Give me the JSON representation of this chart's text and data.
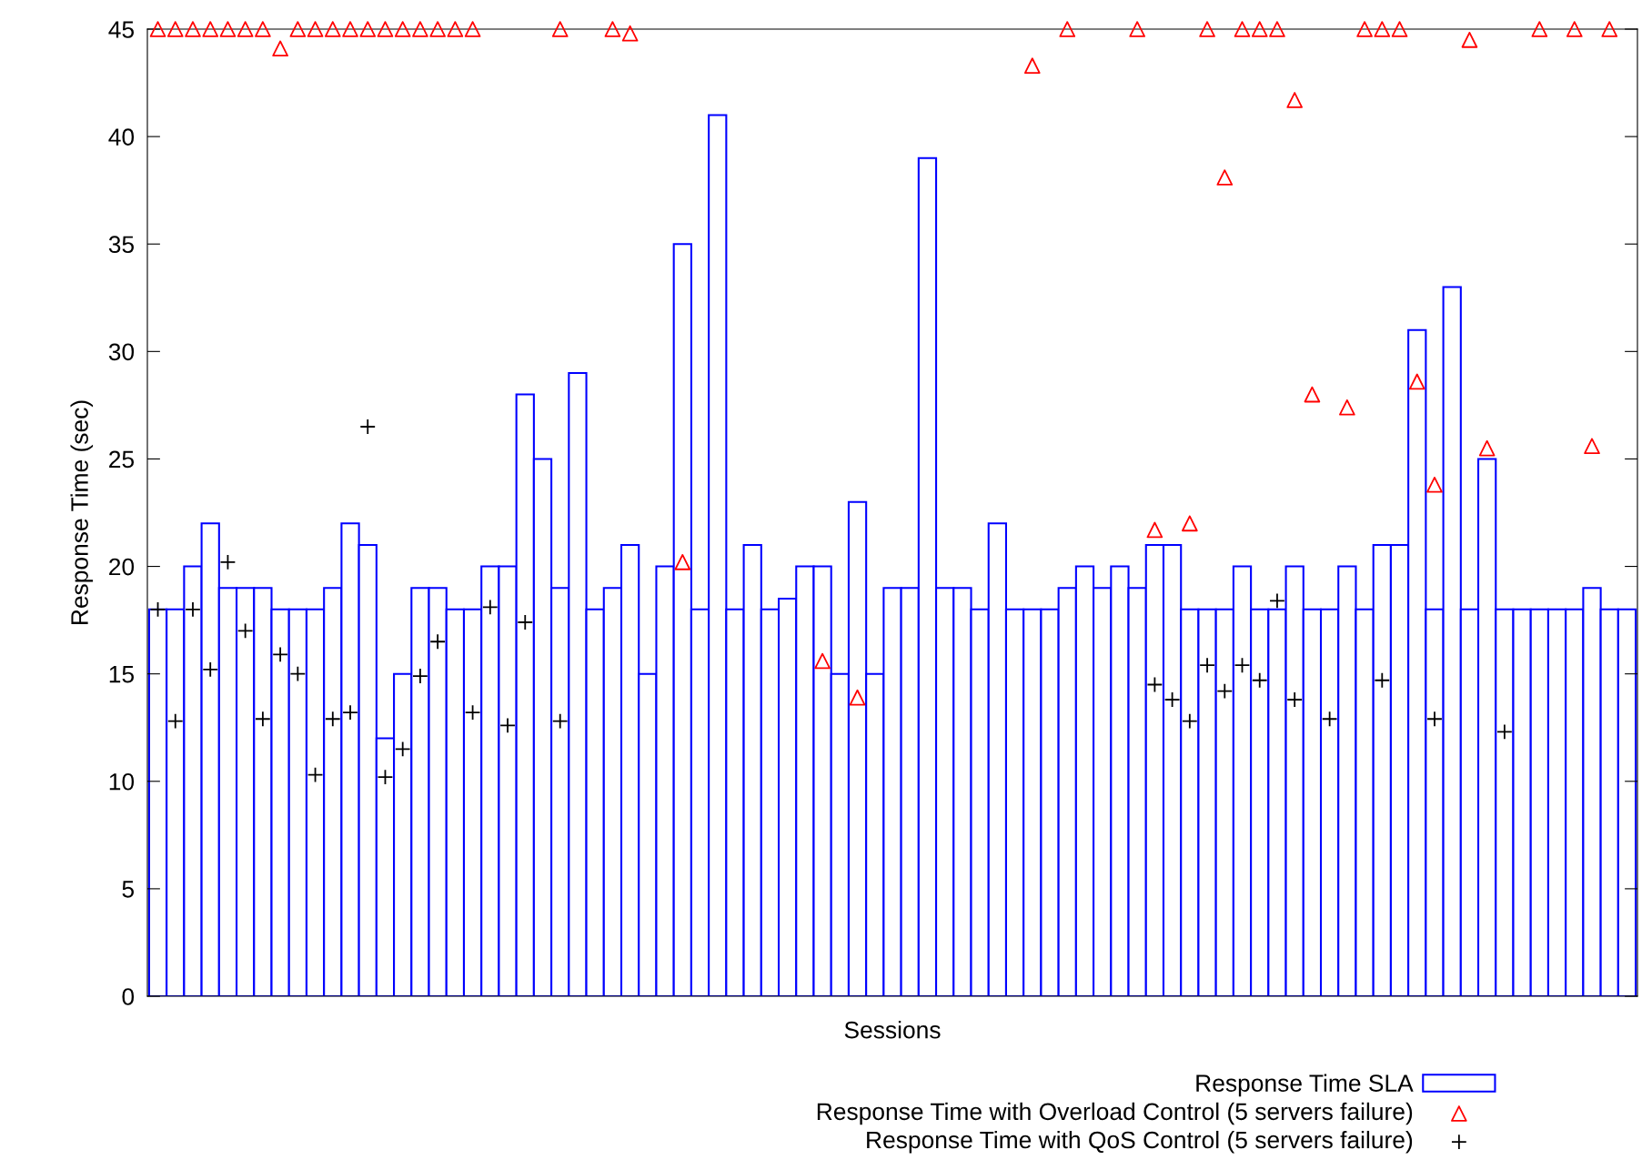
{
  "chart_data": {
    "type": "bar",
    "xlabel": "Sessions",
    "ylabel": "Response Time (sec)",
    "categories": [
      null,
      null,
      null,
      null,
      null,
      null,
      null,
      null,
      null,
      null,
      null,
      null,
      null,
      null,
      null,
      null,
      null,
      null,
      null,
      null,
      null,
      null,
      null,
      null,
      null,
      null,
      null,
      null,
      null,
      null,
      null,
      null,
      null,
      null,
      null,
      null,
      null,
      null,
      null,
      null,
      null,
      null,
      null,
      null,
      null,
      null,
      null,
      null,
      null,
      null,
      null,
      null,
      null,
      null,
      null,
      null,
      null,
      null,
      null,
      null,
      null,
      null,
      null,
      null,
      null,
      null,
      null,
      null,
      null,
      null,
      null,
      null,
      null,
      null,
      null,
      null,
      null,
      null,
      null,
      null,
      null,
      null,
      null,
      null,
      null
    ],
    "ylim": [
      0,
      45
    ],
    "yticks": [
      0,
      5,
      10,
      15,
      20,
      25,
      30,
      35,
      40,
      45
    ],
    "grid": false,
    "legend": "bottom right",
    "series": [
      {
        "name": "Response Time SLA",
        "color": "#0000ff",
        "values": [
          18,
          18,
          20,
          22,
          19,
          19,
          19,
          18,
          18,
          18,
          19,
          22,
          21,
          12,
          15,
          19,
          19,
          18,
          18,
          20,
          20,
          28,
          25,
          19,
          29,
          18,
          19,
          21,
          15,
          20,
          35,
          18,
          41,
          18,
          21,
          18,
          18.5,
          20,
          20,
          15,
          23,
          15,
          19,
          19,
          39,
          19,
          19,
          18,
          22,
          18,
          18,
          18,
          19,
          20,
          19,
          20,
          19,
          21,
          21,
          18,
          18,
          18,
          20,
          18,
          18,
          20,
          18,
          18,
          20,
          18,
          21,
          21,
          31,
          18,
          33,
          18,
          25,
          18,
          18,
          18,
          18,
          18,
          19,
          18,
          18
        ]
      },
      {
        "name": "Response Time with Overload Control (5 servers failure)",
        "type": "scatter",
        "marker": "triangle",
        "color": "#ff0000",
        "values": [
          45,
          45,
          45,
          45,
          45,
          45,
          45,
          44.1,
          45,
          45,
          45,
          45,
          45,
          45,
          45,
          45,
          45,
          45,
          45,
          null,
          null,
          null,
          null,
          45,
          null,
          null,
          45,
          44.8,
          null,
          null,
          20.2,
          null,
          null,
          null,
          null,
          null,
          null,
          null,
          15.6,
          null,
          13.9,
          null,
          null,
          null,
          null,
          null,
          null,
          null,
          null,
          null,
          43.3,
          null,
          45,
          null,
          null,
          null,
          45,
          21.7,
          null,
          22,
          45,
          38.1,
          45,
          45,
          45,
          41.7,
          28,
          null,
          27.4,
          45,
          45,
          45,
          28.6,
          23.8,
          null,
          44.5,
          25.5,
          null,
          null,
          45,
          null,
          45,
          25.6,
          45,
          null
        ]
      },
      {
        "name": "Response Time with QoS Control (5 servers failure)",
        "type": "scatter",
        "marker": "cross",
        "color": "#000000",
        "values": [
          18,
          12.8,
          18,
          15.2,
          20.2,
          17,
          12.9,
          15.9,
          15,
          10.3,
          12.9,
          13.2,
          26.5,
          10.2,
          11.5,
          14.9,
          16.5,
          null,
          13.2,
          18.1,
          12.6,
          17.4,
          null,
          12.8,
          null,
          null,
          null,
          null,
          null,
          null,
          null,
          null,
          null,
          null,
          null,
          null,
          null,
          null,
          null,
          null,
          null,
          null,
          null,
          null,
          null,
          null,
          null,
          null,
          null,
          null,
          null,
          null,
          null,
          null,
          null,
          null,
          null,
          14.5,
          13.8,
          12.8,
          15.4,
          14.2,
          15.4,
          14.7,
          18.4,
          13.8,
          null,
          12.9,
          null,
          null,
          14.7,
          null,
          null,
          12.9,
          null,
          null,
          null,
          12.3,
          null,
          null,
          null,
          null,
          null,
          null,
          null
        ]
      }
    ]
  }
}
